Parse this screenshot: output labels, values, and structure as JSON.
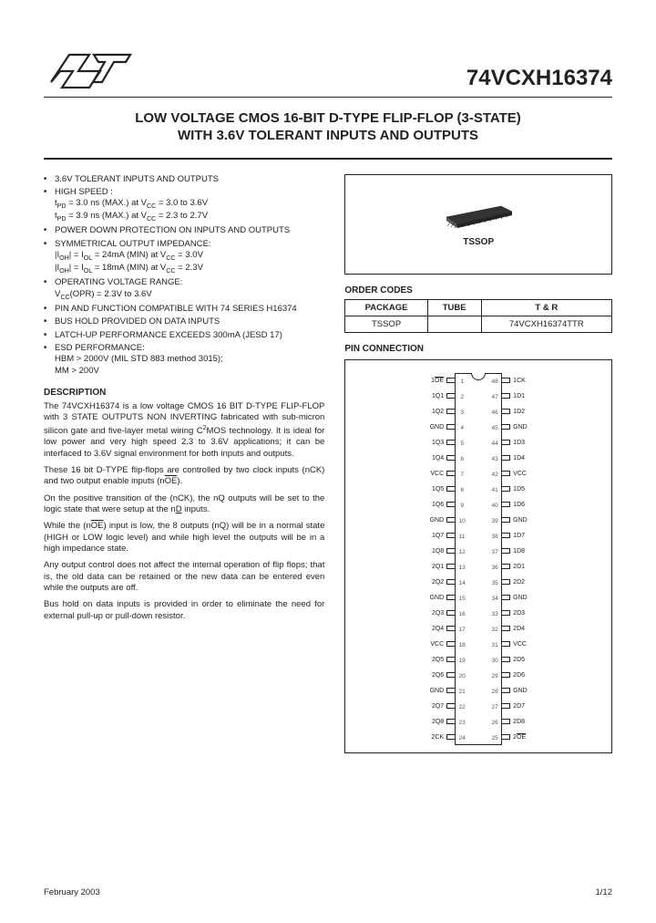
{
  "header": {
    "part_number": "74VCXH16374",
    "title_line1": "LOW VOLTAGE CMOS  16-BIT D-TYPE FLIP-FLOP (3-STATE)",
    "title_line2": "WITH 3.6V TOLERANT INPUTS AND OUTPUTS"
  },
  "features": [
    {
      "text": "3.6V TOLERANT INPUTS AND OUTPUTS"
    },
    {
      "text": "HIGH SPEED :",
      "sub": [
        "t_PD = 3.0 ns (MAX.) at V_CC = 3.0 to 3.6V",
        "t_PD = 3.9 ns (MAX.) at V_CC = 2.3 to 2.7V"
      ]
    },
    {
      "text": "POWER DOWN PROTECTION ON INPUTS AND OUTPUTS"
    },
    {
      "text": "SYMMETRICAL OUTPUT IMPEDANCE:",
      "sub": [
        "|I_OH| = I_OL = 24mA (MIN) at V_CC = 3.0V",
        "|I_OH| = I_OL = 18mA (MIN) at V_CC = 2.3V"
      ]
    },
    {
      "text": "OPERATING VOLTAGE RANGE:",
      "sub": [
        "V_CC(OPR) = 2.3V to 3.6V"
      ]
    },
    {
      "text": "PIN AND FUNCTION COMPATIBLE WITH 74 SERIES H16374"
    },
    {
      "text": "BUS HOLD PROVIDED ON DATA INPUTS"
    },
    {
      "text": "LATCH-UP PERFORMANCE EXCEEDS 300mA (JESD 17)"
    },
    {
      "text": "ESD PERFORMANCE:",
      "sub": [
        "HBM > 2000V (MIL STD 883 method 3015);",
        "MM > 200V"
      ]
    }
  ],
  "description_head": "DESCRIPTION",
  "description": [
    "The 74VCXH16374 is a low voltage CMOS 16 BIT D-TYPE FLIP-FLOP with 3 STATE OUTPUTS NON  INVERTING fabricated with sub-micron silicon gate and five-layer metal wiring C²MOS technology. It is ideal for low power and very high speed 2.3 to 3.6V applications; it can be interfaced to 3.6V signal environment for both inputs and outputs.",
    "These 16 bit D-TYPE flip-flops are controlled by two clock inputs (nCK) and two output enable inputs (nOE).",
    "On the positive transition of the (nCK), the nQ outputs will be set to the logic state that were setup at the nD inputs.",
    "While the (nOE) input is low, the 8 outputs (nQ) will be in a normal state (HIGH or LOW logic level) and while high level the outputs will be in a high impedance state.",
    "Any output control does not affect the internal operation of flip flops; that is, the old data can be retained or the new data can be entered even while the outputs are off.",
    "Bus hold on data inputs is provided in order to eliminate the need for external pull-up or pull-down resistor."
  ],
  "package": {
    "box_label": "TSSOP",
    "head": "ORDER CODES",
    "table": {
      "headers": [
        "PACKAGE",
        "TUBE",
        "T & R"
      ],
      "row": [
        "TSSOP",
        "",
        "74VCXH16374TTR"
      ]
    }
  },
  "pins_head": "PIN CONNECTION",
  "pins_left": [
    {
      "label": "1OE",
      "ov": true,
      "n": "1"
    },
    {
      "label": "1Q1",
      "n": "2"
    },
    {
      "label": "1Q2",
      "n": "3"
    },
    {
      "label": "GND",
      "n": "4"
    },
    {
      "label": "1Q3",
      "n": "5"
    },
    {
      "label": "1Q4",
      "n": "6"
    },
    {
      "label": "VCC",
      "n": "7"
    },
    {
      "label": "1Q5",
      "n": "8"
    },
    {
      "label": "1Q6",
      "n": "9"
    },
    {
      "label": "GND",
      "n": "10"
    },
    {
      "label": "1Q7",
      "n": "11"
    },
    {
      "label": "1Q8",
      "n": "12"
    },
    {
      "label": "2Q1",
      "n": "13"
    },
    {
      "label": "2Q2",
      "n": "14"
    },
    {
      "label": "GND",
      "n": "15"
    },
    {
      "label": "2Q3",
      "n": "16"
    },
    {
      "label": "2Q4",
      "n": "17"
    },
    {
      "label": "VCC",
      "n": "18"
    },
    {
      "label": "2Q5",
      "n": "19"
    },
    {
      "label": "2Q6",
      "n": "20"
    },
    {
      "label": "GND",
      "n": "21"
    },
    {
      "label": "2Q7",
      "n": "22"
    },
    {
      "label": "2Q8",
      "n": "23"
    },
    {
      "label": "2CK",
      "n": "24"
    }
  ],
  "pins_right": [
    {
      "label": "1CK",
      "n": "48"
    },
    {
      "label": "1D1",
      "n": "47"
    },
    {
      "label": "1D2",
      "n": "46"
    },
    {
      "label": "GND",
      "n": "45"
    },
    {
      "label": "1D3",
      "n": "44"
    },
    {
      "label": "1D4",
      "n": "43"
    },
    {
      "label": "VCC",
      "n": "42"
    },
    {
      "label": "1D5",
      "n": "41"
    },
    {
      "label": "1D6",
      "n": "40"
    },
    {
      "label": "GND",
      "n": "39"
    },
    {
      "label": "1D7",
      "n": "38"
    },
    {
      "label": "1D8",
      "n": "37"
    },
    {
      "label": "2D1",
      "n": "36"
    },
    {
      "label": "2D2",
      "n": "35"
    },
    {
      "label": "GND",
      "n": "34"
    },
    {
      "label": "2D3",
      "n": "33"
    },
    {
      "label": "2D4",
      "n": "32"
    },
    {
      "label": "VCC",
      "n": "31"
    },
    {
      "label": "2D5",
      "n": "30"
    },
    {
      "label": "2D6",
      "n": "29"
    },
    {
      "label": "GND",
      "n": "28"
    },
    {
      "label": "2D7",
      "n": "27"
    },
    {
      "label": "2D8",
      "n": "26"
    },
    {
      "label": "2OE",
      "ov": true,
      "n": "25"
    }
  ],
  "footer": {
    "date": "February 2003",
    "page": "1/12"
  },
  "colors": {
    "rule": "#222222",
    "text": "#222222",
    "bg": "#ffffff"
  }
}
